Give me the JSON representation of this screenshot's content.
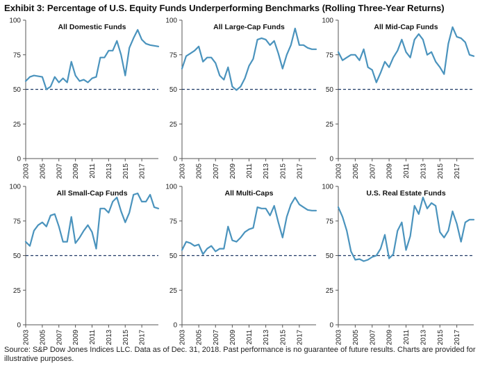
{
  "title": "Exhibit 3: Percentage of U.S. Equity Funds Underperforming Benchmarks (Rolling Three-Year Returns)",
  "source": "Source: S&P Dow Jones Indices LLC.  Data as of Dec. 31, 2018.  Past performance is no guarantee of future results.  Charts are provided for illustrative purposes.",
  "colors": {
    "line": "#4a93bd",
    "ref": "#1f3864",
    "axis": "#555555",
    "text": "#111111"
  },
  "chart_data": [
    {
      "type": "line",
      "title": "All Domestic Funds",
      "xlim": [
        2003,
        2019
      ],
      "ylim": [
        0,
        100
      ],
      "xticks": [
        "2003",
        "2005",
        "2007",
        "2009",
        "2011",
        "2013",
        "2015",
        "2017"
      ],
      "yticks": [
        "0",
        "25",
        "50",
        "75",
        "100"
      ],
      "reference_line": 50,
      "series": [
        {
          "x": [
            2003,
            2003.5,
            2004,
            2004.5,
            2005,
            2005.5,
            2006,
            2006.5,
            2007,
            2007.5,
            2008,
            2008.5,
            2009,
            2009.5,
            2010,
            2010.5,
            2011,
            2011.5,
            2012,
            2012.5,
            2013,
            2013.5,
            2014,
            2014.5,
            2015,
            2015.5,
            2016,
            2016.5,
            2017,
            2017.5,
            2018,
            2018.5,
            2019
          ],
          "y": [
            56,
            59,
            60,
            59.5,
            59,
            50,
            52,
            59,
            55,
            58,
            55,
            70,
            60,
            56,
            57,
            55,
            58,
            59,
            73,
            73,
            78,
            78,
            85,
            75,
            60,
            80,
            87,
            93,
            86,
            83,
            82,
            81.5,
            81
          ]
        }
      ]
    },
    {
      "type": "line",
      "title": "All Large-Cap Funds",
      "xlim": [
        2003,
        2019
      ],
      "ylim": [
        0,
        100
      ],
      "xticks": [
        "2003",
        "2005",
        "2007",
        "2009",
        "2011",
        "2013",
        "2015",
        "2017"
      ],
      "yticks": [
        "0",
        "25",
        "50",
        "75",
        "100"
      ],
      "reference_line": 50,
      "series": [
        {
          "x": [
            2003,
            2003.5,
            2004,
            2004.5,
            2005,
            2005.5,
            2006,
            2006.5,
            2007,
            2007.5,
            2008,
            2008.5,
            2009,
            2009.5,
            2010,
            2010.5,
            2011,
            2011.5,
            2012,
            2012.5,
            2013,
            2013.5,
            2014,
            2014.5,
            2015,
            2015.5,
            2016,
            2016.5,
            2017,
            2017.5,
            2018,
            2018.5,
            2019
          ],
          "y": [
            65,
            74,
            76,
            78,
            81,
            70,
            73,
            73,
            69,
            60,
            57,
            66,
            52,
            49.5,
            52,
            58,
            67,
            72,
            86,
            87,
            86,
            82,
            85,
            76,
            65,
            75,
            82,
            94,
            82,
            82,
            80,
            79,
            79
          ]
        }
      ]
    },
    {
      "type": "line",
      "title": "All Mid-Cap Funds",
      "xlim": [
        2003,
        2019
      ],
      "ylim": [
        0,
        100
      ],
      "xticks": [
        "2003",
        "2005",
        "2007",
        "2009",
        "2011",
        "2013",
        "2015",
        "2017"
      ],
      "yticks": [
        "0",
        "25",
        "50",
        "75",
        "100"
      ],
      "reference_line": 50,
      "series": [
        {
          "x": [
            2003,
            2003.5,
            2004,
            2004.5,
            2005,
            2005.5,
            2006,
            2006.5,
            2007,
            2007.5,
            2008,
            2008.5,
            2009,
            2009.5,
            2010,
            2010.5,
            2011,
            2011.5,
            2012,
            2012.5,
            2013,
            2013.5,
            2014,
            2014.5,
            2015,
            2015.5,
            2016,
            2016.5,
            2017,
            2017.5,
            2018,
            2018.5,
            2019
          ],
          "y": [
            77,
            71,
            73,
            75,
            75,
            71,
            79,
            66,
            64,
            55,
            62,
            70,
            66,
            73,
            78,
            86,
            77,
            73,
            86,
            90,
            86,
            75,
            77,
            70,
            66,
            61,
            83,
            95,
            88,
            87,
            84,
            75,
            74
          ]
        }
      ]
    },
    {
      "type": "line",
      "title": "All Small-Cap Funds",
      "xlim": [
        2003,
        2019
      ],
      "ylim": [
        0,
        100
      ],
      "xticks": [
        "2003",
        "2005",
        "2007",
        "2009",
        "2011",
        "2013",
        "2015",
        "2017"
      ],
      "yticks": [
        "0",
        "25",
        "50",
        "75",
        "100"
      ],
      "reference_line": 50,
      "series": [
        {
          "x": [
            2003,
            2003.5,
            2004,
            2004.5,
            2005,
            2005.5,
            2006,
            2006.5,
            2007,
            2007.5,
            2008,
            2008.5,
            2009,
            2009.5,
            2010,
            2010.5,
            2011,
            2011.5,
            2012,
            2012.5,
            2013,
            2013.5,
            2014,
            2014.5,
            2015,
            2015.5,
            2016,
            2016.5,
            2017,
            2017.5,
            2018,
            2018.5,
            2019
          ],
          "y": [
            60,
            57,
            68,
            72,
            74,
            71,
            79,
            80,
            71,
            60,
            60,
            78,
            59,
            63,
            68,
            72,
            67,
            55,
            84,
            84,
            81,
            89,
            92,
            82,
            74,
            81,
            94,
            95,
            89,
            89,
            94,
            85,
            84
          ]
        }
      ]
    },
    {
      "type": "line",
      "title": "All Multi-Caps",
      "xlim": [
        2003,
        2019
      ],
      "ylim": [
        0,
        100
      ],
      "xticks": [
        "2003",
        "2005",
        "2007",
        "2009",
        "2011",
        "2013",
        "2015",
        "2017"
      ],
      "yticks": [
        "0",
        "25",
        "50",
        "75",
        "100"
      ],
      "reference_line": 50,
      "series": [
        {
          "x": [
            2003,
            2003.5,
            2004,
            2004.5,
            2005,
            2005.5,
            2006,
            2006.5,
            2007,
            2007.5,
            2008,
            2008.5,
            2009,
            2009.5,
            2010,
            2010.5,
            2011,
            2011.5,
            2012,
            2012.5,
            2013,
            2013.5,
            2014,
            2014.5,
            2015,
            2015.5,
            2016,
            2016.5,
            2017,
            2017.5,
            2018,
            2018.5,
            2019
          ],
          "y": [
            54,
            60,
            59,
            57,
            58,
            51,
            55,
            57,
            53,
            55,
            55,
            71,
            61,
            60,
            63,
            67,
            69,
            70,
            85,
            84,
            84,
            79,
            86,
            74,
            63,
            78,
            87,
            92,
            87,
            85,
            83,
            82.5,
            82.5
          ]
        }
      ]
    },
    {
      "type": "line",
      "title": "U.S. Real Estate Funds",
      "xlim": [
        2003,
        2019
      ],
      "ylim": [
        0,
        100
      ],
      "xticks": [
        "2003",
        "2005",
        "2007",
        "2009",
        "2011",
        "2013",
        "2015",
        "2017"
      ],
      "yticks": [
        "0",
        "25",
        "50",
        "75",
        "100"
      ],
      "reference_line": 50,
      "series": [
        {
          "x": [
            2003,
            2003.5,
            2004,
            2004.5,
            2005,
            2005.5,
            2006,
            2006.5,
            2007,
            2007.5,
            2008,
            2008.5,
            2009,
            2009.5,
            2010,
            2010.5,
            2011,
            2011.5,
            2012,
            2012.5,
            2013,
            2013.5,
            2014,
            2014.5,
            2015,
            2015.5,
            2016,
            2016.5,
            2017,
            2017.5,
            2018,
            2018.5,
            2019
          ],
          "y": [
            85,
            78,
            68,
            53,
            47,
            47.5,
            46,
            47,
            49,
            50,
            55,
            65,
            48,
            51,
            68,
            74,
            54,
            64,
            86,
            80,
            92,
            84,
            88,
            86,
            67,
            63,
            68,
            82,
            73,
            60,
            74,
            76,
            76
          ]
        }
      ]
    }
  ]
}
